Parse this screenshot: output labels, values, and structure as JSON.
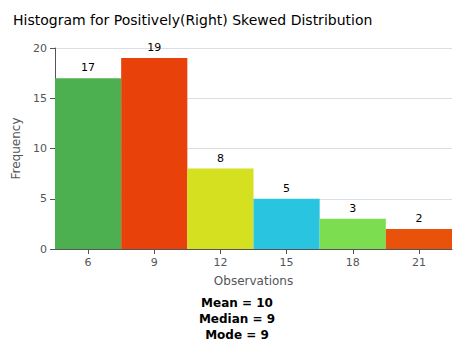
{
  "chart_data": {
    "type": "bar",
    "title": "Histogram for Positively(Right) Skewed Distribution",
    "xlabel": "Observations",
    "ylabel": "Frequency",
    "x": [
      6,
      9,
      12,
      15,
      18,
      21
    ],
    "values": [
      17,
      19,
      8,
      5,
      3,
      2
    ],
    "colors": [
      "#4caf50",
      "#e8420a",
      "#d4e020",
      "#29c5e0",
      "#7ddd50",
      "#e8520a"
    ],
    "xlim": [
      4.5,
      22.5
    ],
    "xticks": [
      6,
      9,
      12,
      15,
      18,
      21
    ],
    "ylim": [
      0,
      20
    ],
    "yticks": [
      0,
      5,
      10,
      15,
      20
    ],
    "grid": true,
    "data_labels": true,
    "annotations": [
      "Mean = 10\nMedian = 9\nMode = 9"
    ]
  }
}
